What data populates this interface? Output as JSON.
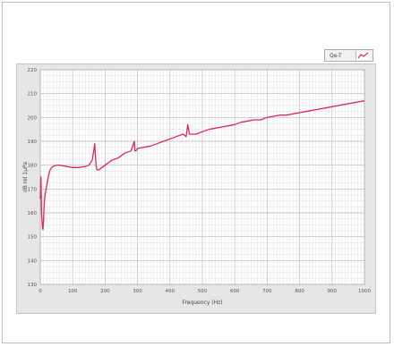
{
  "legend": {
    "label": "Qe-T",
    "icon": "line-series-icon",
    "color": "#e0245e"
  },
  "chart_data": {
    "type": "line",
    "title": "",
    "xlabel": "Frequency (Hz)",
    "ylabel": "dB rel 1µPa",
    "xlim": [
      0,
      1000
    ],
    "ylim": [
      130,
      220
    ],
    "xticks": [
      0,
      100,
      200,
      300,
      400,
      500,
      600,
      700,
      800,
      900,
      1000
    ],
    "yticks": [
      130,
      140,
      150,
      160,
      170,
      180,
      190,
      200,
      210,
      220
    ],
    "grid": true,
    "series_color": "#e0245e",
    "background": "#ffffff",
    "series": [
      {
        "x": [
          0,
          2,
          4,
          6,
          8,
          10,
          12,
          15,
          18,
          22,
          26,
          30,
          35,
          40,
          50,
          60,
          80,
          100,
          120,
          140,
          150,
          160,
          165,
          168,
          170,
          172,
          175,
          180,
          185,
          190,
          200,
          210,
          220,
          240,
          260,
          280,
          290,
          292,
          295,
          300,
          320,
          340,
          360,
          380,
          400,
          420,
          440,
          450,
          455,
          460,
          480,
          500,
          520,
          540,
          560,
          580,
          600,
          620,
          640,
          660,
          680,
          700,
          720,
          740,
          760,
          780,
          800,
          820,
          840,
          860,
          880,
          900,
          920,
          940,
          960,
          980,
          1000
        ],
        "y": [
          166,
          175,
          160,
          155,
          153,
          157,
          163,
          168,
          170,
          173,
          176,
          178,
          179,
          179.5,
          180,
          180,
          179.5,
          179,
          179,
          179.5,
          180,
          182,
          186,
          189,
          184,
          180,
          178,
          178,
          178.5,
          179,
          180,
          181,
          182,
          183,
          185,
          186,
          190,
          186,
          186,
          187,
          187.5,
          188,
          189,
          190,
          191,
          192,
          193,
          192,
          197,
          193,
          193,
          194,
          195,
          195.5,
          196,
          196.5,
          197,
          198,
          198.5,
          199,
          199,
          200,
          200.5,
          201,
          201,
          201.5,
          202,
          202.5,
          203,
          203.5,
          204,
          204.5,
          205,
          205.5,
          206,
          206.5,
          207
        ]
      }
    ]
  }
}
